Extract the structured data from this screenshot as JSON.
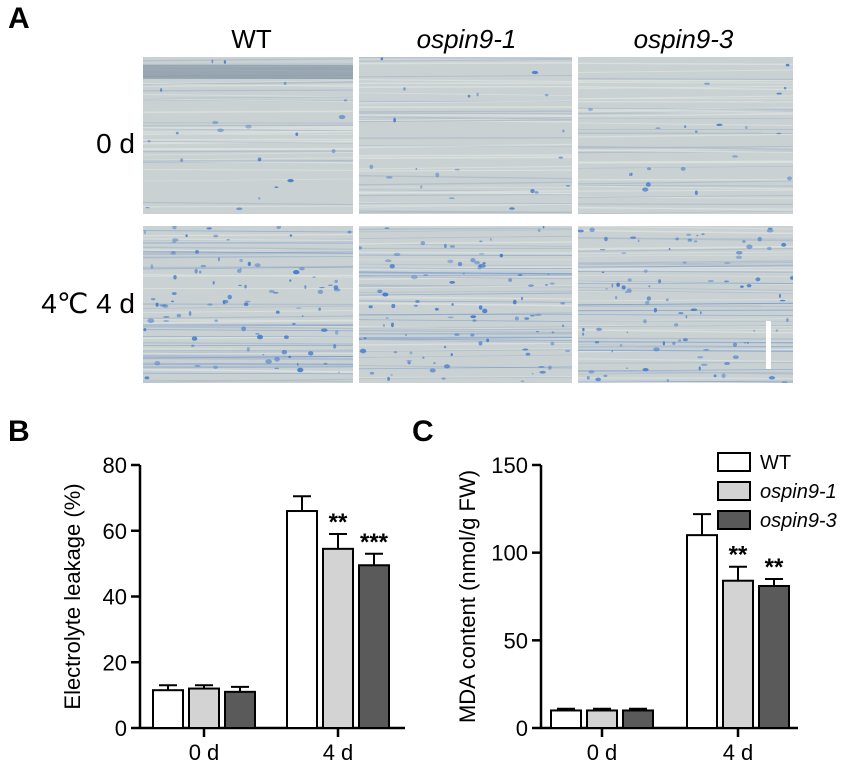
{
  "panel_a": {
    "letter": "A",
    "columns": [
      "WT",
      "ospin9-1",
      "ospin9-3"
    ],
    "rows": [
      "0 d",
      "4℃ 4 d"
    ],
    "colors": {
      "background": "#c9d1d3",
      "stain": "#3f77c9"
    }
  },
  "chart_data": [
    {
      "type": "bar",
      "panel": "B",
      "categories": [
        "0 d",
        "4 d"
      ],
      "series": [
        {
          "name": "WT",
          "values": [
            11.5,
            66
          ],
          "errors": [
            1.5,
            4.5
          ],
          "color": "#ffffff"
        },
        {
          "name": "ospin9-1",
          "values": [
            12,
            54.5
          ],
          "errors": [
            1,
            4.5
          ],
          "color": "#d3d3d3"
        },
        {
          "name": "ospin9-3",
          "values": [
            11,
            49.5
          ],
          "errors": [
            1.5,
            3.5
          ],
          "color": "#5a5a5a"
        }
      ],
      "significance": [
        [
          "",
          ""
        ],
        [
          "",
          "**"
        ],
        [
          "",
          "***"
        ]
      ],
      "ylabel": "Electrolyte leakage (%)",
      "ylim": [
        0,
        80
      ],
      "yticks": [
        "0",
        "20",
        "40",
        "60",
        "80"
      ],
      "legend": false
    },
    {
      "type": "bar",
      "panel": "C",
      "categories": [
        "0 d",
        "4 d"
      ],
      "series": [
        {
          "name": "WT",
          "values": [
            10,
            110
          ],
          "errors": [
            1,
            12
          ],
          "color": "#ffffff"
        },
        {
          "name": "ospin9-1",
          "values": [
            10,
            84
          ],
          "errors": [
            1,
            8
          ],
          "color": "#d3d3d3"
        },
        {
          "name": "ospin9-3",
          "values": [
            10,
            81
          ],
          "errors": [
            1,
            4
          ],
          "color": "#5a5a5a"
        }
      ],
      "significance": [
        [
          "",
          ""
        ],
        [
          "",
          "**"
        ],
        [
          "",
          "**"
        ]
      ],
      "ylabel": "MDA content (nmol/g FW)",
      "ylim": [
        0,
        150
      ],
      "yticks": [
        "0",
        "50",
        "100",
        "150"
      ],
      "legend": true,
      "legend_position": "top-right"
    }
  ]
}
